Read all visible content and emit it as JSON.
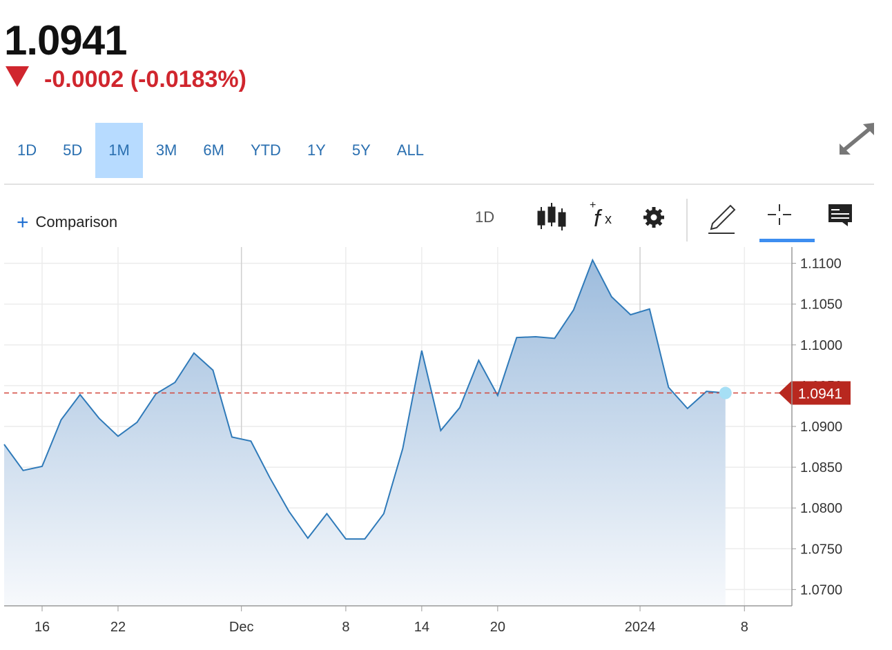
{
  "header": {
    "price": "1.0941",
    "change": "-0.0002 (-0.0183%)"
  },
  "ranges": [
    "1D",
    "5D",
    "1M",
    "3M",
    "6M",
    "YTD",
    "1Y",
    "5Y",
    "ALL"
  ],
  "selected_range": "1M",
  "toolbar": {
    "comparison": "Comparison",
    "interval": "1D"
  },
  "chart_data": {
    "type": "area",
    "color": "#2f7ab9",
    "grid": true,
    "x": [
      0,
      1,
      2,
      3,
      4,
      5,
      6,
      7,
      8,
      9,
      10,
      11,
      12,
      13,
      14,
      15,
      16,
      17,
      18,
      19,
      20,
      21,
      22,
      23,
      24,
      25,
      26,
      27,
      28,
      29,
      30,
      31,
      32,
      33,
      34,
      35,
      36,
      37,
      38
    ],
    "values": [
      1.0878,
      1.0846,
      1.0851,
      1.0908,
      1.0939,
      1.091,
      1.0888,
      1.0905,
      1.094,
      1.0954,
      1.099,
      1.0969,
      1.0887,
      1.0882,
      1.0837,
      1.0796,
      1.0763,
      1.0793,
      1.0762,
      1.0762,
      1.0793,
      1.0873,
      1.0993,
      1.0895,
      1.0923,
      1.0981,
      1.0938,
      1.1009,
      1.101,
      1.1008,
      1.1043,
      1.1104,
      1.1059,
      1.1037,
      1.1044,
      1.0948,
      1.0922,
      1.0943,
      1.0941
    ],
    "xlim": [
      0,
      41.5
    ],
    "xticks": [
      {
        "value": 2,
        "label": "16"
      },
      {
        "value": 6,
        "label": "22"
      },
      {
        "value": 12.5,
        "label": "Dec"
      },
      {
        "value": 18,
        "label": "8"
      },
      {
        "value": 22,
        "label": "14"
      },
      {
        "value": 26,
        "label": "20"
      },
      {
        "value": 33.5,
        "label": "2024"
      },
      {
        "value": 39,
        "label": "8"
      }
    ],
    "ylim": [
      1.068,
      1.112
    ],
    "yticks": [
      {
        "value": 1.07,
        "label": "1.0700"
      },
      {
        "value": 1.075,
        "label": "1.0750"
      },
      {
        "value": 1.08,
        "label": "1.0800"
      },
      {
        "value": 1.085,
        "label": "1.0850"
      },
      {
        "value": 1.09,
        "label": "1.0900"
      },
      {
        "value": 1.095,
        "label": "1.0950"
      },
      {
        "value": 1.1,
        "label": "1.1000"
      },
      {
        "value": 1.105,
        "label": "1.1050"
      },
      {
        "value": 1.11,
        "label": "1.1100"
      }
    ]
  }
}
